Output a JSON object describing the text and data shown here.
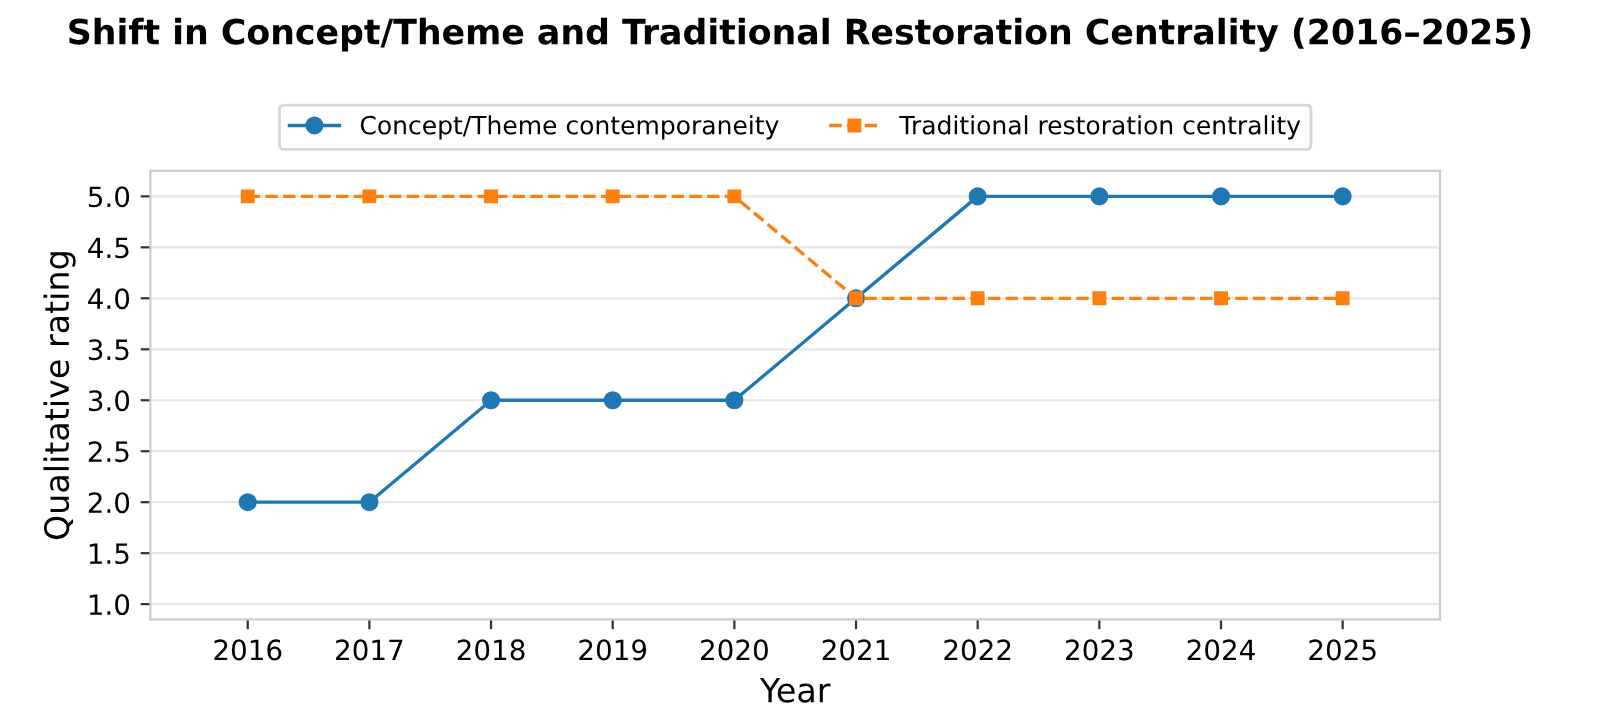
{
  "chart_data": {
    "type": "line",
    "title": "Shift in Concept/Theme and Traditional Restoration Centrality (2016–2025)",
    "xlabel": "Year",
    "ylabel": "Qualitative rating",
    "x": [
      2016,
      2017,
      2018,
      2019,
      2020,
      2021,
      2022,
      2023,
      2024,
      2025
    ],
    "series": [
      {
        "name": "Concept/Theme contemporaneity",
        "color": "#1f77b4",
        "values": [
          2,
          2,
          3,
          3,
          3,
          4,
          5,
          5,
          5,
          5
        ],
        "marker": "circle",
        "line_style": "solid"
      },
      {
        "name": "Traditional restoration centrality",
        "color": "#ff7f0e",
        "values": [
          5,
          5,
          5,
          5,
          5,
          4,
          4,
          4,
          4,
          4
        ],
        "marker": "square",
        "line_style": "dashed"
      }
    ],
    "xlim": [
      2015.2,
      2025.8
    ],
    "xticks": [
      2016,
      2017,
      2018,
      2019,
      2020,
      2021,
      2022,
      2023,
      2024,
      2025
    ],
    "ylim": [
      0.85,
      5.25
    ],
    "yticks": [
      {
        "value": 1,
        "label": "1.0"
      },
      {
        "value": 1.5,
        "label": "1.5"
      },
      {
        "value": 2,
        "label": "2.0"
      },
      {
        "value": 2.5,
        "label": "2.5"
      },
      {
        "value": 3,
        "label": "3.0"
      },
      {
        "value": 3.5,
        "label": "3.5"
      },
      {
        "value": 4,
        "label": "4.0"
      },
      {
        "value": 4.5,
        "label": "4.5"
      },
      {
        "value": 5,
        "label": "5.0"
      }
    ],
    "grid": "y",
    "legend": "top"
  }
}
